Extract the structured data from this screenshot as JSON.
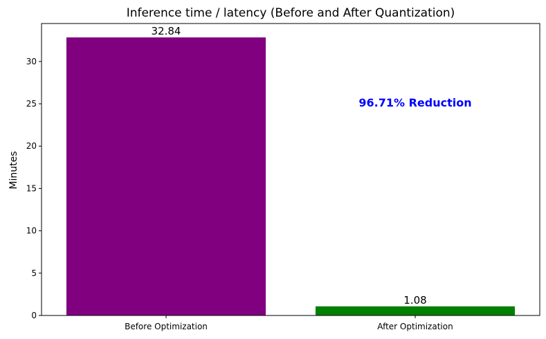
{
  "chart_data": {
    "type": "bar",
    "title": "Inference time / latency (Before and After Quantization)",
    "xlabel": "",
    "ylabel": "Minutes",
    "categories": [
      "Before Optimization",
      "After Optimization"
    ],
    "values": [
      32.84,
      1.08
    ],
    "value_labels": [
      "32.84",
      "1.08"
    ],
    "bar_colors": [
      "#800080",
      "#008000"
    ],
    "ylim": [
      0,
      34.48
    ],
    "yticks": [
      0,
      5,
      10,
      15,
      20,
      25,
      30
    ],
    "grid": false,
    "annotation": {
      "text": "96.71% Reduction",
      "color": "#0000ff",
      "x": 1,
      "y": 25
    }
  }
}
